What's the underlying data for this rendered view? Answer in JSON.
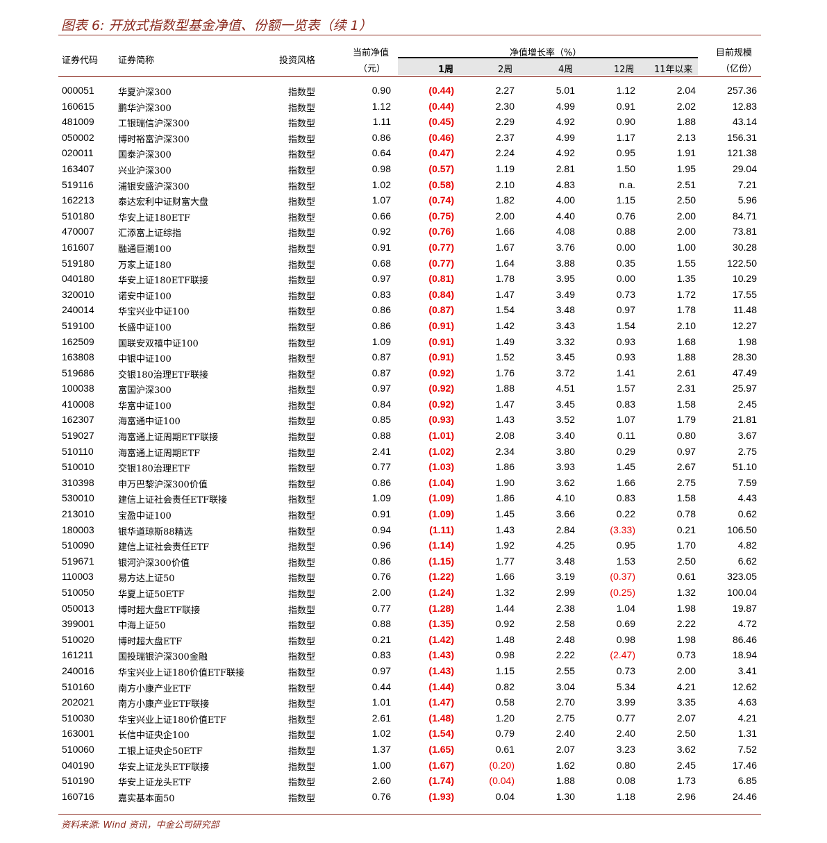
{
  "title": "图表 6:  开放式指数型基金净值、份额一览表（续 1）",
  "header": {
    "code": "证券代码",
    "name": "证券简称",
    "style": "投资风格",
    "nav_line1": "当前净值",
    "nav_line2": "（元）",
    "growth": "净值增长率（%）",
    "w1": "1周",
    "w2": "2周",
    "w4": "4周",
    "w12": "12周",
    "y11": "11年以来",
    "size_line1": "目前规模",
    "size_line2": "（亿份）"
  },
  "rows": [
    [
      "000051",
      "华夏沪深300",
      "指数型",
      "0.90",
      "(0.44)",
      "2.27",
      "5.01",
      "1.12",
      "2.04",
      "257.36"
    ],
    [
      "160615",
      "鹏华沪深300",
      "指数型",
      "1.12",
      "(0.44)",
      "2.30",
      "4.99",
      "0.91",
      "2.02",
      "12.83"
    ],
    [
      "481009",
      "工银瑞信沪深300",
      "指数型",
      "1.11",
      "(0.45)",
      "2.29",
      "4.92",
      "0.90",
      "1.88",
      "43.14"
    ],
    [
      "050002",
      "博时裕富沪深300",
      "指数型",
      "0.86",
      "(0.46)",
      "2.37",
      "4.99",
      "1.17",
      "2.13",
      "156.31"
    ],
    [
      "020011",
      "国泰沪深300",
      "指数型",
      "0.64",
      "(0.47)",
      "2.24",
      "4.92",
      "0.95",
      "1.91",
      "121.38"
    ],
    [
      "163407",
      "兴业沪深300",
      "指数型",
      "0.98",
      "(0.57)",
      "1.19",
      "2.81",
      "1.50",
      "1.95",
      "29.04"
    ],
    [
      "519116",
      "浦银安盛沪深300",
      "指数型",
      "1.02",
      "(0.58)",
      "2.10",
      "4.83",
      "n.a.",
      "2.51",
      "7.21"
    ],
    [
      "162213",
      "泰达宏利中证财富大盘",
      "指数型",
      "1.07",
      "(0.74)",
      "1.82",
      "4.00",
      "1.15",
      "2.50",
      "5.96"
    ],
    [
      "510180",
      "华安上证180ETF",
      "指数型",
      "0.66",
      "(0.75)",
      "2.00",
      "4.40",
      "0.76",
      "2.00",
      "84.71"
    ],
    [
      "470007",
      "汇添富上证综指",
      "指数型",
      "0.92",
      "(0.76)",
      "1.66",
      "4.08",
      "0.88",
      "2.00",
      "73.81"
    ],
    [
      "161607",
      "融通巨潮100",
      "指数型",
      "0.91",
      "(0.77)",
      "1.67",
      "3.76",
      "0.00",
      "1.00",
      "30.28"
    ],
    [
      "519180",
      "万家上证180",
      "指数型",
      "0.68",
      "(0.77)",
      "1.64",
      "3.88",
      "0.35",
      "1.55",
      "122.50"
    ],
    [
      "040180",
      "华安上证180ETF联接",
      "指数型",
      "0.97",
      "(0.81)",
      "1.78",
      "3.95",
      "0.00",
      "1.35",
      "10.29"
    ],
    [
      "320010",
      "诺安中证100",
      "指数型",
      "0.83",
      "(0.84)",
      "1.47",
      "3.49",
      "0.73",
      "1.72",
      "17.55"
    ],
    [
      "240014",
      "华宝兴业中证100",
      "指数型",
      "0.86",
      "(0.87)",
      "1.54",
      "3.48",
      "0.97",
      "1.78",
      "11.48"
    ],
    [
      "519100",
      "长盛中证100",
      "指数型",
      "0.86",
      "(0.91)",
      "1.42",
      "3.43",
      "1.54",
      "2.10",
      "12.27"
    ],
    [
      "162509",
      "国联安双禧中证100",
      "指数型",
      "1.09",
      "(0.91)",
      "1.49",
      "3.32",
      "0.93",
      "1.68",
      "1.98"
    ],
    [
      "163808",
      "中银中证100",
      "指数型",
      "0.87",
      "(0.91)",
      "1.52",
      "3.45",
      "0.93",
      "1.88",
      "28.30"
    ],
    [
      "519686",
      "交银180治理ETF联接",
      "指数型",
      "0.87",
      "(0.92)",
      "1.76",
      "3.72",
      "1.41",
      "2.61",
      "47.49"
    ],
    [
      "100038",
      "富国沪深300",
      "指数型",
      "0.97",
      "(0.92)",
      "1.88",
      "4.51",
      "1.57",
      "2.31",
      "25.97"
    ],
    [
      "410008",
      "华富中证100",
      "指数型",
      "0.84",
      "(0.92)",
      "1.47",
      "3.45",
      "0.83",
      "1.58",
      "2.45"
    ],
    [
      "162307",
      "海富通中证100",
      "指数型",
      "0.85",
      "(0.93)",
      "1.43",
      "3.52",
      "1.07",
      "1.79",
      "21.81"
    ],
    [
      "519027",
      "海富通上证周期ETF联接",
      "指数型",
      "0.88",
      "(1.01)",
      "2.08",
      "3.40",
      "0.11",
      "0.80",
      "3.67"
    ],
    [
      "510110",
      "海富通上证周期ETF",
      "指数型",
      "2.41",
      "(1.02)",
      "2.34",
      "3.80",
      "0.29",
      "0.97",
      "2.75"
    ],
    [
      "510010",
      "交银180治理ETF",
      "指数型",
      "0.77",
      "(1.03)",
      "1.86",
      "3.93",
      "1.45",
      "2.67",
      "51.10"
    ],
    [
      "310398",
      "申万巴黎沪深300价值",
      "指数型",
      "0.86",
      "(1.04)",
      "1.90",
      "3.62",
      "1.66",
      "2.75",
      "7.59"
    ],
    [
      "530010",
      "建信上证社会责任ETF联接",
      "指数型",
      "1.09",
      "(1.09)",
      "1.86",
      "4.10",
      "0.83",
      "1.58",
      "4.43"
    ],
    [
      "213010",
      "宝盈中证100",
      "指数型",
      "0.91",
      "(1.09)",
      "1.45",
      "3.66",
      "0.22",
      "0.78",
      "0.62"
    ],
    [
      "180003",
      "银华道琼斯88精选",
      "指数型",
      "0.94",
      "(1.11)",
      "1.43",
      "2.84",
      "(3.33)",
      "0.21",
      "106.50"
    ],
    [
      "510090",
      "建信上证社会责任ETF",
      "指数型",
      "0.96",
      "(1.14)",
      "1.92",
      "4.25",
      "0.95",
      "1.70",
      "4.82"
    ],
    [
      "519671",
      "银河沪深300价值",
      "指数型",
      "0.86",
      "(1.15)",
      "1.77",
      "3.48",
      "1.53",
      "2.50",
      "6.62"
    ],
    [
      "110003",
      "易方达上证50",
      "指数型",
      "0.76",
      "(1.22)",
      "1.66",
      "3.19",
      "(0.37)",
      "0.61",
      "323.05"
    ],
    [
      "510050",
      "华夏上证50ETF",
      "指数型",
      "2.00",
      "(1.24)",
      "1.32",
      "2.99",
      "(0.25)",
      "1.32",
      "100.04"
    ],
    [
      "050013",
      "博时超大盘ETF联接",
      "指数型",
      "0.77",
      "(1.28)",
      "1.44",
      "2.38",
      "1.04",
      "1.98",
      "19.87"
    ],
    [
      "399001",
      "中海上证50",
      "指数型",
      "0.88",
      "(1.35)",
      "0.92",
      "2.58",
      "0.69",
      "2.22",
      "4.72"
    ],
    [
      "510020",
      "博时超大盘ETF",
      "指数型",
      "0.21",
      "(1.42)",
      "1.48",
      "2.48",
      "0.98",
      "1.98",
      "86.46"
    ],
    [
      "161211",
      "国投瑞银沪深300金融",
      "指数型",
      "0.83",
      "(1.43)",
      "0.98",
      "2.22",
      "(2.47)",
      "0.73",
      "18.94"
    ],
    [
      "240016",
      "华宝兴业上证180价值ETF联接",
      "指数型",
      "0.97",
      "(1.43)",
      "1.15",
      "2.55",
      "0.73",
      "2.00",
      "3.41"
    ],
    [
      "510160",
      "南方小康产业ETF",
      "指数型",
      "0.44",
      "(1.44)",
      "0.82",
      "3.04",
      "5.34",
      "4.21",
      "12.62"
    ],
    [
      "202021",
      "南方小康产业ETF联接",
      "指数型",
      "1.01",
      "(1.47)",
      "0.58",
      "2.70",
      "3.99",
      "3.35",
      "4.63"
    ],
    [
      "510030",
      "华宝兴业上证180价值ETF",
      "指数型",
      "2.61",
      "(1.48)",
      "1.20",
      "2.75",
      "0.77",
      "2.07",
      "4.21"
    ],
    [
      "163001",
      "长信中证央企100",
      "指数型",
      "1.02",
      "(1.54)",
      "0.79",
      "2.40",
      "2.40",
      "2.50",
      "1.31"
    ],
    [
      "510060",
      "工银上证央企50ETF",
      "指数型",
      "1.37",
      "(1.65)",
      "0.61",
      "2.07",
      "3.23",
      "3.62",
      "7.52"
    ],
    [
      "040190",
      "华安上证龙头ETF联接",
      "指数型",
      "1.00",
      "(1.67)",
      "(0.20)",
      "1.62",
      "0.80",
      "2.45",
      "17.46"
    ],
    [
      "510190",
      "华安上证龙头ETF",
      "指数型",
      "2.60",
      "(1.74)",
      "(0.04)",
      "1.88",
      "0.08",
      "1.73",
      "6.85"
    ],
    [
      "160716",
      "嘉实基本面50",
      "指数型",
      "0.76",
      "(1.93)",
      "0.04",
      "1.30",
      "1.18",
      "2.96",
      "24.46"
    ]
  ],
  "source": "资料来源: Wind 资讯，中金公司研究部",
  "colors": {
    "accent": "#8b2b1f",
    "negative": "#e60000",
    "band": "#e6e6e6"
  }
}
